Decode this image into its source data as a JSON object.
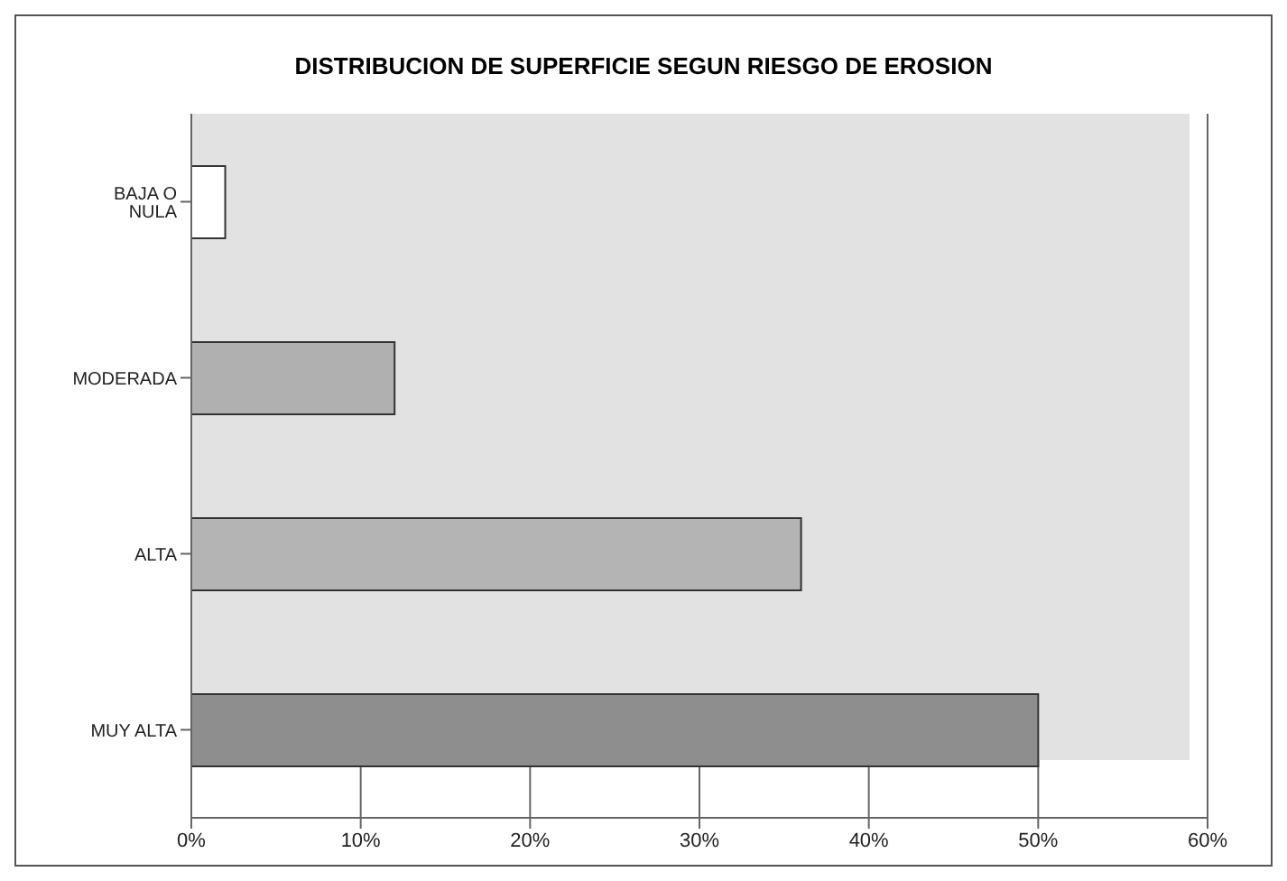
{
  "chart_data": {
    "type": "bar",
    "orientation": "horizontal",
    "title": "DISTRIBUCION DE SUPERFICIE SEGUN RIESGO DE EROSION",
    "categories": [
      "BAJA O NULA",
      "MODERADA",
      "ALTA",
      "MUY ALTA"
    ],
    "values": [
      2,
      12,
      36,
      50
    ],
    "colors": [
      "#ffffff",
      "#b0b0b0",
      "#b4b4b4",
      "#8e8e8e"
    ],
    "xlim": [
      0,
      60
    ],
    "xticks": [
      {
        "value": 0,
        "label": "0%"
      },
      {
        "value": 10,
        "label": "10%"
      },
      {
        "value": 20,
        "label": "20%"
      },
      {
        "value": 30,
        "label": "30%"
      },
      {
        "value": 40,
        "label": "40%"
      },
      {
        "value": 50,
        "label": "50%"
      },
      {
        "value": 60,
        "label": "60%"
      }
    ],
    "grid": "x",
    "legend": false
  }
}
